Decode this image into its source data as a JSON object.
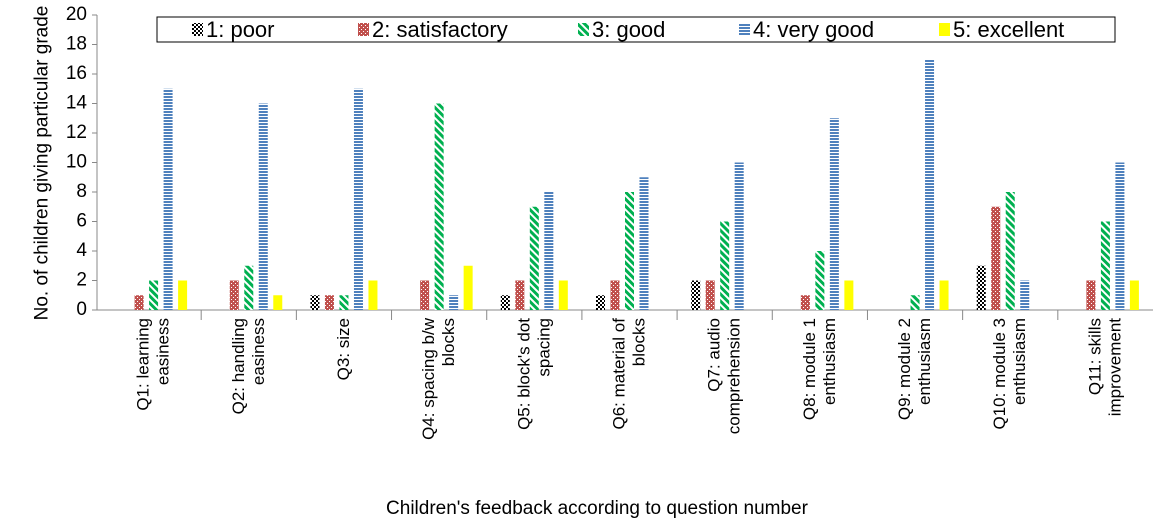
{
  "chart_data": {
    "type": "bar",
    "ylabel": "No. of  children giving particular grade",
    "xlabel": "Children's feedback according to question number",
    "categories": [
      "Q1: learning easiness",
      "Q2: handling easiness",
      "Q3: size",
      "Q4: spacing b/w blocks",
      "Q5: block's dot spacing",
      "Q6: material of blocks",
      "Q7: audio comprehension",
      "Q8: module 1 enthusiasm",
      "Q9: module 2 enthusiasm",
      "Q10: module 3 enthusiasm",
      "Q11: skills improvement"
    ],
    "series": [
      {
        "name": "1: poor",
        "color": "#000000",
        "pattern": "checker",
        "values": [
          0,
          0,
          1,
          0,
          1,
          1,
          2,
          0,
          0,
          3,
          0
        ]
      },
      {
        "name": "2: satisfactory",
        "color": "#c0504d",
        "pattern": "dots",
        "values": [
          1,
          2,
          1,
          2,
          2,
          2,
          2,
          1,
          0,
          7,
          2
        ]
      },
      {
        "name": "3: good",
        "color": "#00b050",
        "pattern": "diagonal",
        "values": [
          2,
          3,
          1,
          14,
          7,
          8,
          6,
          4,
          1,
          8,
          6
        ]
      },
      {
        "name": "4: very good",
        "color": "#4f81bd",
        "pattern": "horizontal",
        "values": [
          15,
          14,
          15,
          1,
          8,
          9,
          10,
          13,
          17,
          2,
          10
        ]
      },
      {
        "name": "5: excellent",
        "color": "#ffff00",
        "pattern": "solid",
        "values": [
          2,
          1,
          2,
          3,
          2,
          0,
          0,
          2,
          2,
          0,
          2
        ]
      }
    ],
    "ylim": [
      0,
      20
    ],
    "yticks": [
      0,
      2,
      4,
      6,
      8,
      10,
      12,
      14,
      16,
      18,
      20
    ],
    "grid": false,
    "legend": "top"
  }
}
